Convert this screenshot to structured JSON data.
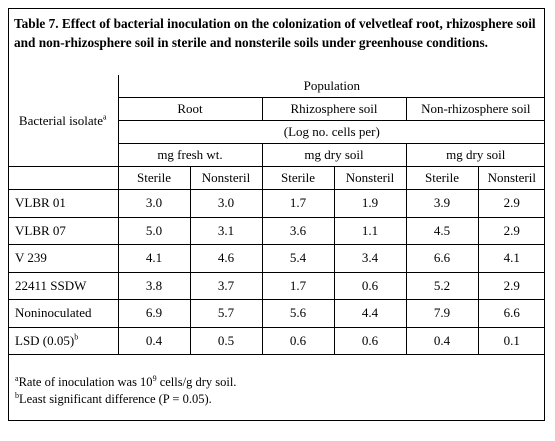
{
  "title": "Table 7. Effect of bacterial inoculation on the colonization of velvetleaf root, rhizosphere soil and non-rhizosphere soil in sterile and nonsterile soils under greenhouse conditions.",
  "header": {
    "isolate_label": "Bacterial isolate",
    "isolate_sup": "a",
    "population": "Population",
    "groups": [
      "Root",
      "Rhizosphere soil",
      "Non-rhizosphere soil"
    ],
    "unit": "(Log no. cells per)",
    "subunits": [
      "mg fresh wt.",
      "mg dry soil",
      "mg dry soil"
    ],
    "conditions": [
      "Sterile",
      "Nonsteril",
      "Sterile",
      "Nonsteril",
      "Sterile",
      "Nonsteril"
    ]
  },
  "rows": [
    {
      "label": "VLBR 01",
      "values": [
        "3.0",
        "3.0",
        "1.7",
        "1.9",
        "3.9",
        "2.9"
      ]
    },
    {
      "label": "VLBR 07",
      "values": [
        "5.0",
        "3.1",
        "3.6",
        "1.1",
        "4.5",
        "2.9"
      ]
    },
    {
      "label": "V 239",
      "values": [
        "4.1",
        "4.6",
        "5.4",
        "3.4",
        "6.6",
        "4.1"
      ]
    },
    {
      "label": "22411 SSDW",
      "values": [
        "3.8",
        "3.7",
        "1.7",
        "0.6",
        "5.2",
        "2.9"
      ]
    },
    {
      "label": "Noninoculated",
      "values": [
        "6.9",
        "5.7",
        "5.6",
        "4.4",
        "7.9",
        "6.6"
      ]
    },
    {
      "label": "LSD (0.05)",
      "sup": "b",
      "values": [
        "0.4",
        "0.5",
        "0.6",
        "0.6",
        "0.4",
        "0.1"
      ]
    }
  ],
  "footnotes": {
    "a_mark": "a",
    "a_text_1": "Rate of inoculation was 10",
    "a_exp": "9",
    "a_text_2": " cells/g dry soil.",
    "b_mark": "b",
    "b_text": "Least significant difference (P = 0.05)."
  }
}
